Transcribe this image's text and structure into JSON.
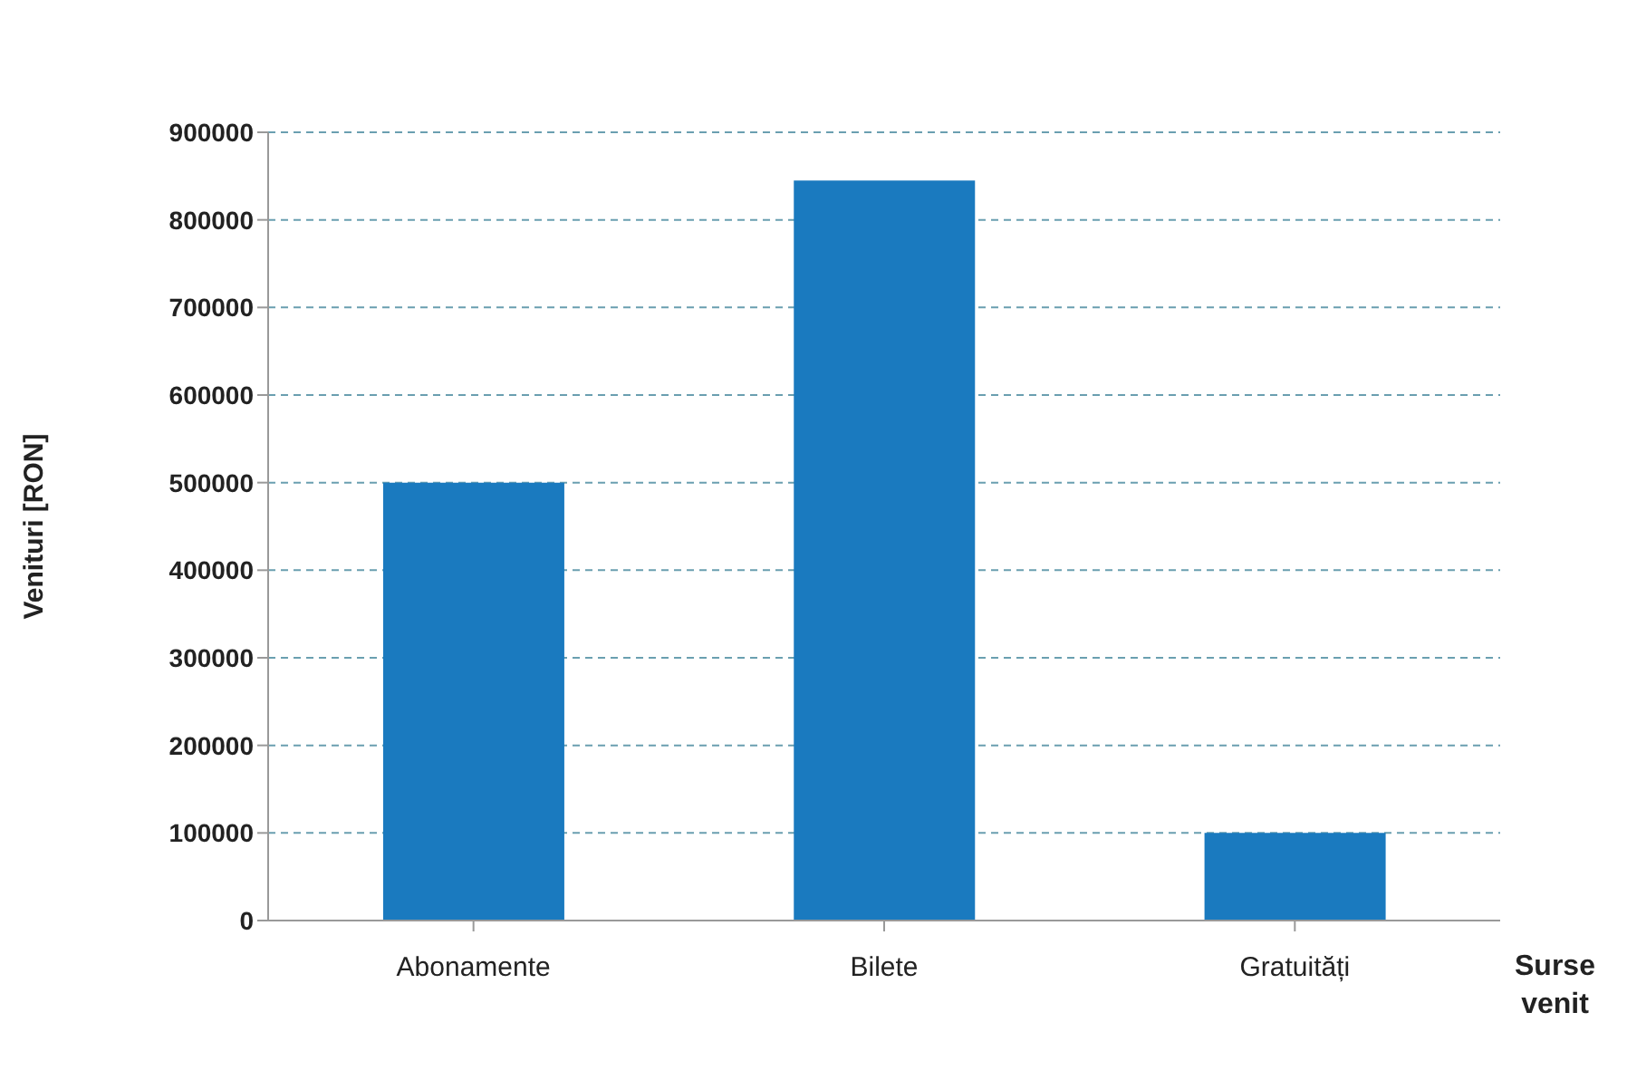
{
  "chart_data": {
    "type": "bar",
    "xlabel": "Surse venit",
    "ylabel": "Venituri [RON]",
    "categories": [
      "Abonamente",
      "Bilete",
      "Gratuități"
    ],
    "series": [
      {
        "color": "#1a7abf",
        "values": [
          500000,
          845000,
          100000
        ]
      }
    ],
    "ylim": [
      0,
      900000
    ],
    "yticks": [
      0,
      100000,
      200000,
      300000,
      400000,
      500000,
      600000,
      700000,
      800000,
      900000
    ],
    "grid": "y"
  }
}
